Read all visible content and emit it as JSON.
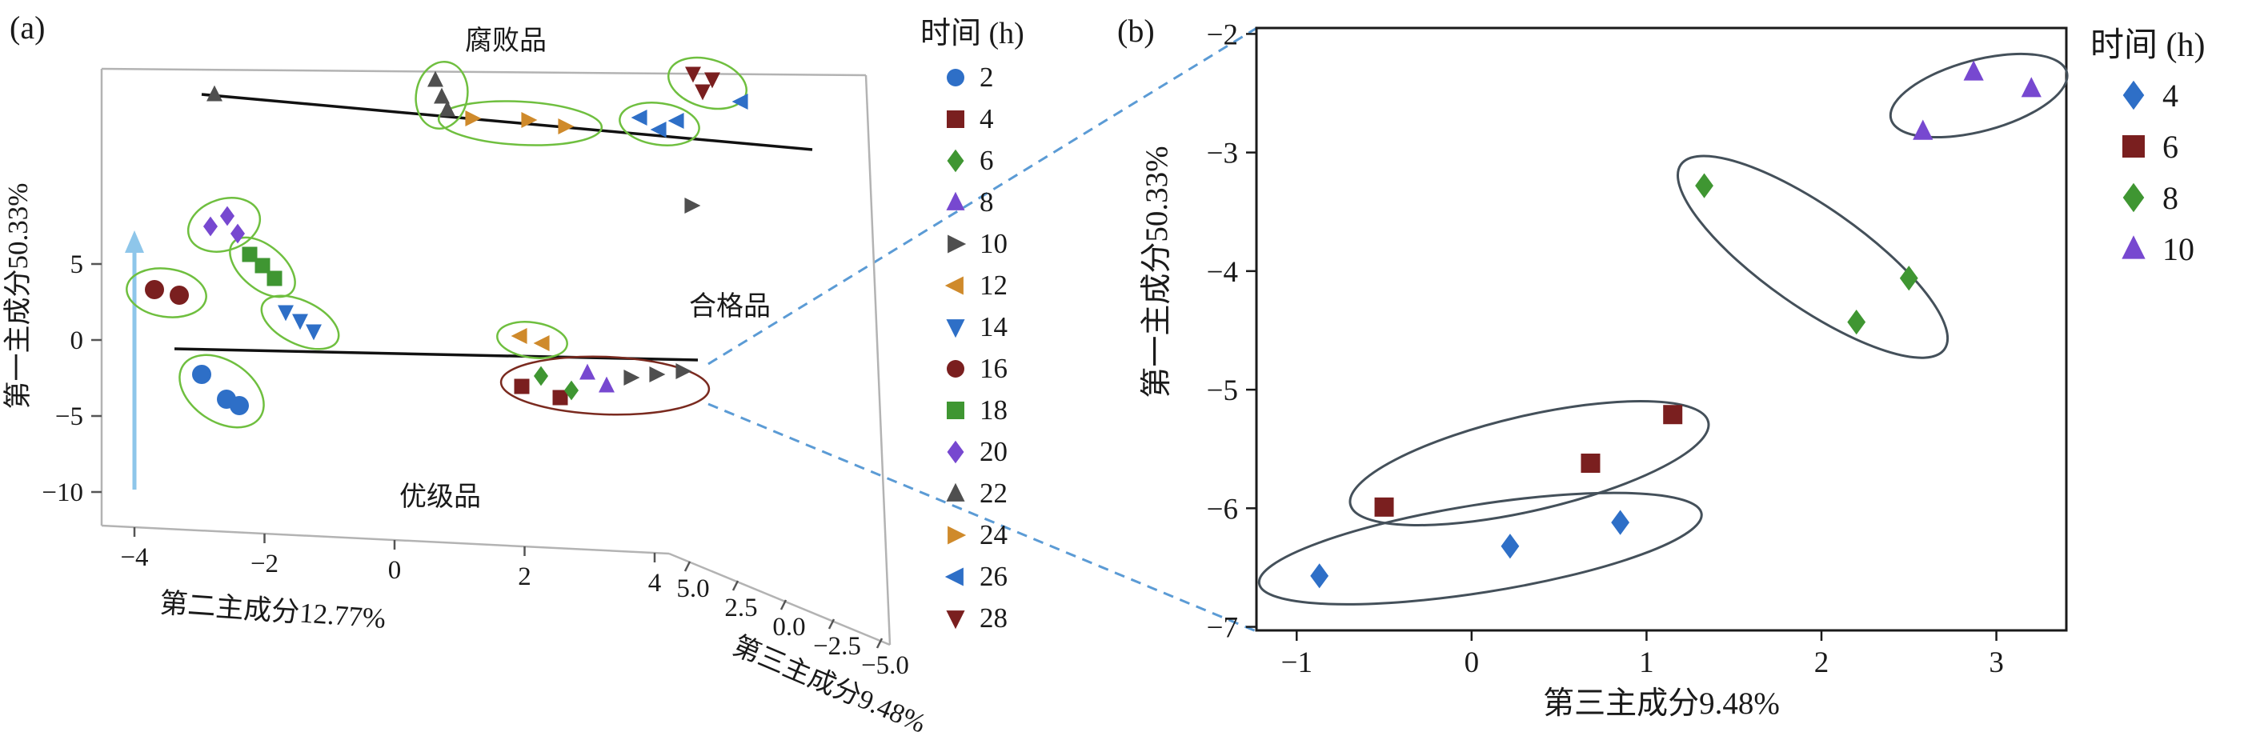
{
  "figure": {
    "panel_a_label": "(a)",
    "panel_b_label": "(b)"
  },
  "chart_data": [
    {
      "panel": "a",
      "type": "scatter",
      "projection": "3d",
      "axes": {
        "y": {
          "label": "第一主成分50.33%",
          "ticks": [
            "5",
            "0",
            "-5",
            "-10"
          ]
        },
        "x": {
          "label": "第二主成分12.77%",
          "ticks": [
            "-4",
            "-2",
            "0",
            "2",
            "4"
          ]
        },
        "z": {
          "label": "第三主成分9.48%",
          "ticks": [
            "5.0",
            "2.5",
            "0.0",
            "-2.5",
            "-5.0"
          ]
        }
      },
      "region_labels": [
        {
          "text": "腐败品",
          "x": 632,
          "y": 62
        },
        {
          "text": "合格品",
          "x": 912,
          "y": 394
        },
        {
          "text": "优级品",
          "x": 550,
          "y": 632
        }
      ],
      "legend": {
        "title": "时间 (h)",
        "entries": [
          {
            "label": "2",
            "marker": "circle",
            "color": "#2e6fc7"
          },
          {
            "label": "4",
            "marker": "square",
            "color": "#7a1f1f"
          },
          {
            "label": "6",
            "marker": "diamond",
            "color": "#3f9632"
          },
          {
            "label": "8",
            "marker": "triangle-up",
            "color": "#7748d0"
          },
          {
            "label": "10",
            "marker": "triangle-right",
            "color": "#4f4f4f"
          },
          {
            "label": "12",
            "marker": "triangle-left",
            "color": "#cf8a2b"
          },
          {
            "label": "14",
            "marker": "triangle-down",
            "color": "#2e6fc7"
          },
          {
            "label": "16",
            "marker": "circle",
            "color": "#7a1f1f"
          },
          {
            "label": "18",
            "marker": "square",
            "color": "#3f9632"
          },
          {
            "label": "20",
            "marker": "diamond",
            "color": "#7748d0"
          },
          {
            "label": "22",
            "marker": "triangle-up",
            "color": "#4f4f4f"
          },
          {
            "label": "24",
            "marker": "triangle-right",
            "color": "#cf8a2b"
          },
          {
            "label": "26",
            "marker": "triangle-left",
            "color": "#2e6fc7"
          },
          {
            "label": "28",
            "marker": "triangle-down",
            "color": "#7a1f1f"
          }
        ]
      },
      "groups": [
        {
          "time": 2,
          "marker": "circle",
          "color": "#2e6fc7",
          "points": [
            [
              252,
              468
            ],
            [
              283,
              499
            ],
            [
              299,
              507
            ]
          ]
        },
        {
          "time": 4,
          "marker": "square",
          "color": "#7a1f1f",
          "points": [
            [
              652,
              483
            ],
            [
              700,
              497
            ]
          ]
        },
        {
          "time": 6,
          "marker": "diamond",
          "color": "#3f9632",
          "points": [
            [
              676,
              470
            ],
            [
              714,
              488
            ]
          ]
        },
        {
          "time": 8,
          "marker": "triangle-up",
          "color": "#7748d0",
          "points": [
            [
              734,
              466
            ],
            [
              758,
              482
            ]
          ]
        },
        {
          "time": 10,
          "marker": "triangle-right",
          "color": "#4f4f4f",
          "points": [
            [
              788,
              472
            ],
            [
              820,
              468
            ],
            [
              853,
              464
            ],
            [
              864,
              257
            ]
          ]
        },
        {
          "time": 12,
          "marker": "triangle-left",
          "color": "#cf8a2b",
          "points": [
            [
              650,
              420
            ],
            [
              678,
              429
            ]
          ]
        },
        {
          "time": 14,
          "marker": "triangle-down",
          "color": "#2e6fc7",
          "points": [
            [
              357,
              390
            ],
            [
              375,
              401
            ],
            [
              392,
              414
            ]
          ]
        },
        {
          "time": 16,
          "marker": "circle",
          "color": "#7a1f1f",
          "points": [
            [
              193,
              362
            ],
            [
              224,
              369
            ]
          ]
        },
        {
          "time": 18,
          "marker": "square",
          "color": "#3f9632",
          "points": [
            [
              312,
              318
            ],
            [
              328,
              332
            ],
            [
              343,
              348
            ]
          ]
        },
        {
          "time": 20,
          "marker": "diamond",
          "color": "#7748d0",
          "points": [
            [
              263,
              283
            ],
            [
              284,
              270
            ],
            [
              297,
              292
            ]
          ]
        },
        {
          "time": 22,
          "marker": "triangle-up",
          "color": "#4f4f4f",
          "points": [
            [
              268,
              118
            ],
            [
              544,
              100
            ],
            [
              552,
              121
            ],
            [
              559,
              137
            ]
          ]
        },
        {
          "time": 24,
          "marker": "triangle-right",
          "color": "#cf8a2b",
          "points": [
            [
              590,
              148
            ],
            [
              660,
              150
            ],
            [
              706,
              158
            ]
          ]
        },
        {
          "time": 26,
          "marker": "triangle-left",
          "color": "#2e6fc7",
          "points": [
            [
              800,
              147
            ],
            [
              824,
              162
            ],
            [
              846,
              151
            ],
            [
              926,
              127
            ]
          ]
        },
        {
          "time": 28,
          "marker": "triangle-down",
          "color": "#7a1f1f",
          "points": [
            [
              866,
              92
            ],
            [
              890,
              99
            ],
            [
              878,
              114
            ]
          ]
        }
      ],
      "cluster_ellipses": [
        {
          "cx": 208,
          "cy": 366,
          "rx": 50,
          "ry": 30,
          "angle": 8,
          "stroke": "#6fbf3f"
        },
        {
          "cx": 280,
          "cy": 281,
          "rx": 46,
          "ry": 32,
          "angle": -18,
          "stroke": "#6fbf3f"
        },
        {
          "cx": 277,
          "cy": 489,
          "rx": 58,
          "ry": 38,
          "angle": 34,
          "stroke": "#6fbf3f"
        },
        {
          "cx": 328,
          "cy": 334,
          "rx": 48,
          "ry": 27,
          "angle": 40,
          "stroke": "#6fbf3f"
        },
        {
          "cx": 375,
          "cy": 403,
          "rx": 52,
          "ry": 27,
          "angle": 26,
          "stroke": "#6fbf3f"
        },
        {
          "cx": 552,
          "cy": 119,
          "rx": 32,
          "ry": 42,
          "angle": 10,
          "stroke": "#6fbf3f"
        },
        {
          "cx": 650,
          "cy": 154,
          "rx": 102,
          "ry": 27,
          "angle": 3,
          "stroke": "#6fbf3f"
        },
        {
          "cx": 824,
          "cy": 155,
          "rx": 50,
          "ry": 26,
          "angle": 8,
          "stroke": "#6fbf3f"
        },
        {
          "cx": 884,
          "cy": 104,
          "rx": 50,
          "ry": 30,
          "angle": 16,
          "stroke": "#6fbf3f"
        },
        {
          "cx": 665,
          "cy": 425,
          "rx": 44,
          "ry": 22,
          "angle": 8,
          "stroke": "#6fbf3f"
        },
        {
          "cx": 756,
          "cy": 482,
          "rx": 130,
          "ry": 36,
          "angle": 2,
          "stroke": "#7a2a1f"
        }
      ]
    },
    {
      "panel": "b",
      "type": "scatter",
      "xlabel": "第三主成分9.48%",
      "ylabel": "第一主成分50.33%",
      "xlim": [
        -1.23,
        3.4
      ],
      "ylim": [
        -7.03,
        -1.95
      ],
      "xticks": [
        -1,
        0,
        1,
        2,
        3
      ],
      "yticks": [
        -2,
        -3,
        -4,
        -5,
        -6,
        -7
      ],
      "legend": {
        "title": "时间 (h)",
        "entries": [
          {
            "label": "4",
            "marker": "diamond",
            "color": "#2e6fc7"
          },
          {
            "label": "6",
            "marker": "square",
            "color": "#7a1f1f"
          },
          {
            "label": "8",
            "marker": "diamond",
            "color": "#3f9632"
          },
          {
            "label": "10",
            "marker": "triangle-up",
            "color": "#7748d0"
          }
        ]
      },
      "series": [
        {
          "name": "4",
          "marker": "diamond",
          "color": "#2e6fc7",
          "points": [
            [
              -0.87,
              -6.57
            ],
            [
              0.22,
              -6.32
            ],
            [
              0.85,
              -6.12
            ]
          ]
        },
        {
          "name": "6",
          "marker": "square",
          "color": "#7a1f1f",
          "points": [
            [
              -0.5,
              -5.99
            ],
            [
              0.68,
              -5.62
            ],
            [
              1.15,
              -5.21
            ]
          ]
        },
        {
          "name": "8",
          "marker": "diamond",
          "color": "#3f9632",
          "points": [
            [
              1.33,
              -3.28
            ],
            [
              2.2,
              -4.43
            ],
            [
              2.5,
              -4.06
            ]
          ]
        },
        {
          "name": "10",
          "marker": "triangle-up",
          "color": "#7748d0",
          "points": [
            [
              2.58,
              -2.82
            ],
            [
              2.87,
              -2.32
            ],
            [
              3.2,
              -2.46
            ]
          ]
        }
      ],
      "cluster_ellipses": [
        {
          "cx": 0.05,
          "cy": -6.34,
          "rx": 1.28,
          "ry": 0.37,
          "angle": -9
        },
        {
          "cx": 0.33,
          "cy": -5.62,
          "rx": 1.05,
          "ry": 0.4,
          "angle": -13
        },
        {
          "cx": 1.95,
          "cy": -3.88,
          "rx": 0.92,
          "ry": 0.42,
          "angle": 35
        },
        {
          "cx": 2.9,
          "cy": -2.52,
          "rx": 0.52,
          "ry": 0.3,
          "angle": -15
        }
      ]
    }
  ]
}
